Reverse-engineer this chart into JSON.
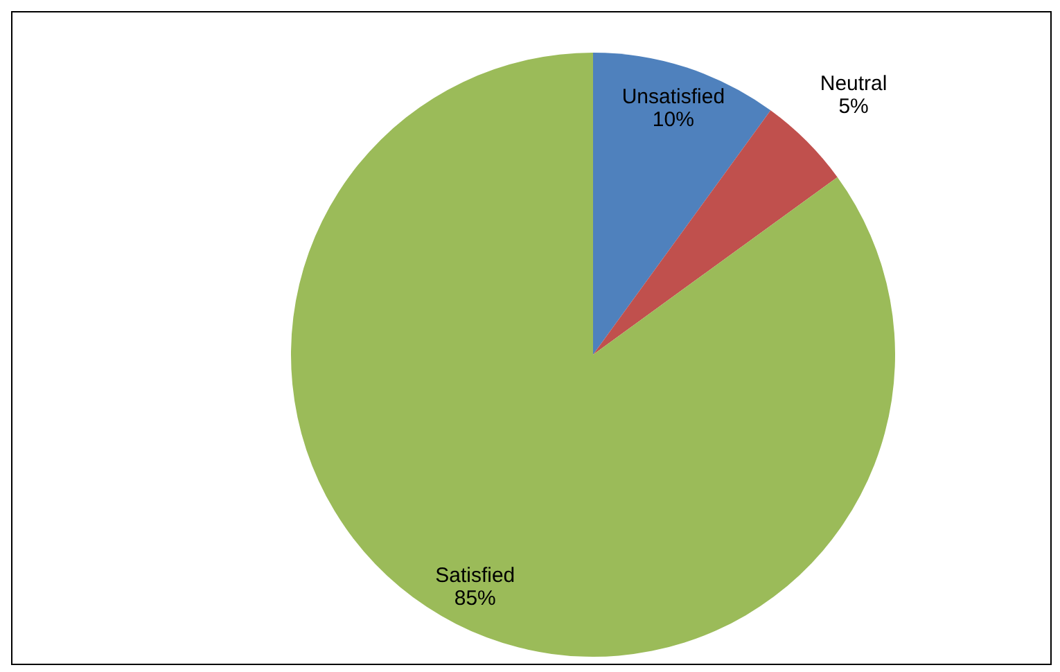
{
  "chart_data": {
    "type": "pie",
    "categories": [
      "Unsatisfied",
      "Neutral",
      "Satisfied"
    ],
    "values": [
      10,
      5,
      85
    ],
    "colors": [
      "#4f81bd",
      "#c0504d",
      "#9bbb59"
    ],
    "value_labels": [
      "10%",
      "5%",
      "85%"
    ]
  }
}
